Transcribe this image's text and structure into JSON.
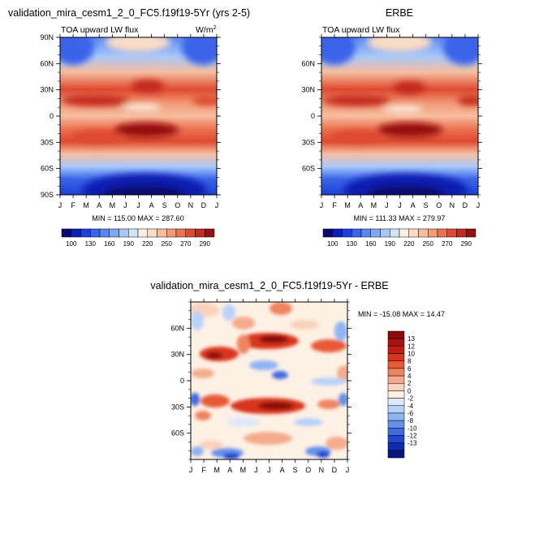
{
  "chart_data": [
    {
      "type": "heatmap",
      "id": "model",
      "title": "validation_mira_cesm1_2_0_FC5.f19f19-5Yr (yrs 2-5)",
      "subtitle": "TOA upward LW flux",
      "units_text": "W/m",
      "units_sup": "2",
      "x_ticks": [
        "J",
        "F",
        "M",
        "A",
        "M",
        "J",
        "J",
        "A",
        "S",
        "O",
        "N",
        "D",
        "J"
      ],
      "y_ticks": [
        "90N",
        "60N",
        "30N",
        "0",
        "30S",
        "60S",
        "90S"
      ],
      "y_range": [
        -90,
        90
      ],
      "min_max": "MIN = 115.00 MAX = 287.60",
      "colorbar_labels": [
        "100",
        "130",
        "160",
        "190",
        "220",
        "250",
        "270",
        "290"
      ]
    },
    {
      "type": "heatmap",
      "id": "obs",
      "title": "ERBE",
      "subtitle": "TOA upward LW flux",
      "x_ticks": [
        "J",
        "F",
        "M",
        "A",
        "M",
        "J",
        "J",
        "A",
        "S",
        "O",
        "N",
        "D",
        "J"
      ],
      "y_ticks": [
        "60N",
        "30N",
        "0",
        "30S",
        "60S"
      ],
      "y_range": [
        -90,
        90
      ],
      "min_max": "MIN = 111.33 MAX = 279.97",
      "colorbar_labels": [
        "100",
        "130",
        "160",
        "190",
        "220",
        "250",
        "270",
        "290"
      ]
    },
    {
      "type": "heatmap",
      "id": "diff",
      "title": "validation_mira_cesm1_2_0_FC5.f19f19-5Yr - ERBE",
      "x_ticks": [
        "J",
        "F",
        "M",
        "A",
        "M",
        "J",
        "J",
        "A",
        "S",
        "O",
        "N",
        "D",
        "J"
      ],
      "y_ticks": [
        "60N",
        "30N",
        "0",
        "30S",
        "60S"
      ],
      "y_range": [
        -90,
        90
      ],
      "min_max": "MIN = -15.08 MAX =  14.47",
      "colorbar_labels": [
        "13",
        "12",
        "10",
        "8",
        "6",
        "4",
        "2",
        "0",
        "-2",
        "-4",
        "-6",
        "-8",
        "-10",
        "-12",
        "-13"
      ]
    }
  ],
  "colors": {
    "lw_scale": [
      "#0a0a6e",
      "#0b1fb0",
      "#1f3fd8",
      "#3a64e8",
      "#5a87f0",
      "#7ea8f5",
      "#a8c8fa",
      "#d2e4fc",
      "#fbf0e4",
      "#f9dcc6",
      "#f6bea0",
      "#f29a76",
      "#ec7352",
      "#de4a31",
      "#c32a1d",
      "#960f10"
    ],
    "diff_scale": [
      "#8c0a0a",
      "#a81212",
      "#c21c14",
      "#d8341c",
      "#e65a36",
      "#ee8460",
      "#f4ab8c",
      "#f9d2bc",
      "#fdf1e6",
      "#dbe8fb",
      "#b8d2f8",
      "#8fb4f3",
      "#6690ea",
      "#4169e0",
      "#2246cf",
      "#102ab0",
      "#0a1680"
    ]
  }
}
